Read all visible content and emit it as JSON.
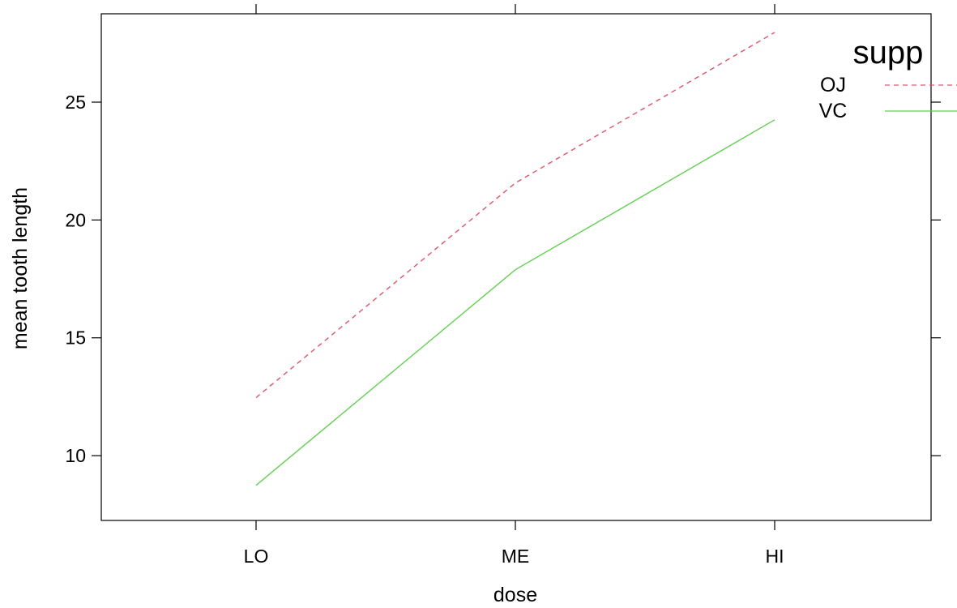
{
  "chart_data": {
    "type": "line",
    "categories": [
      "LO",
      "ME",
      "HI"
    ],
    "xlabel": "dose",
    "ylabel": "mean tooth length",
    "ylim": [
      7.25,
      28.75
    ],
    "yticks": [
      10,
      15,
      20,
      25
    ],
    "grid": false,
    "legend": {
      "title": "supp",
      "placement": "top-right"
    },
    "series": [
      {
        "name": "OJ",
        "values": [
          12.46,
          21.57,
          27.96
        ],
        "color": "#DF536B",
        "line_style": "dashed"
      },
      {
        "name": "VC",
        "values": [
          8.74,
          17.89,
          24.25
        ],
        "color": "#61D04F",
        "line_style": "solid"
      }
    ]
  }
}
